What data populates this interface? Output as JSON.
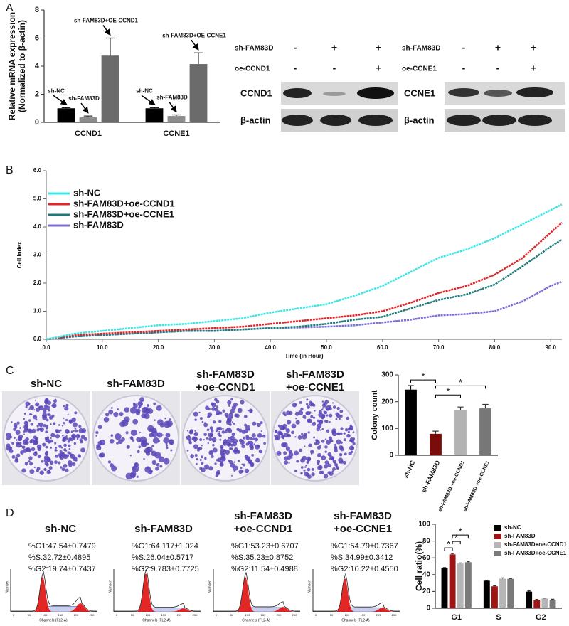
{
  "panel_labels": [
    "A",
    "B",
    "C",
    "D"
  ],
  "chart_data": [
    {
      "type": "bar",
      "categories": [
        "CCND1",
        "CCNE1"
      ],
      "ylabel": [
        "Relative mRNA expression",
        "(Normalized to β-actin)"
      ],
      "series": [
        {
          "color": "#000000",
          "values": [
            1.0,
            1.0
          ],
          "errors": [
            0.05,
            0.05
          ]
        },
        {
          "color": "#8c8c8c",
          "values": [
            0.35,
            0.45
          ],
          "errors": [
            0.1,
            0.08
          ]
        },
        {
          "color": "#6b6b6b",
          "values": [
            4.75,
            4.15
          ],
          "errors": [
            1.25,
            0.8
          ]
        }
      ],
      "annotations": [
        [
          "sh-NC",
          "sh-FAM83D",
          "sh-FAM83D+OE-CCND1"
        ],
        [
          "sh-NC",
          "sh-FAM83D",
          "sh-FAM83D+OE-CCNE1"
        ]
      ],
      "ylim": [
        0,
        8
      ],
      "yticks": [
        0,
        2,
        4,
        6,
        8
      ]
    },
    {
      "type": "line",
      "xlabel": "Time (in Hour)",
      "ylabel": "Cell Index",
      "legend": "upper left",
      "x": [
        0,
        5,
        10,
        15,
        20,
        25,
        30,
        35,
        40,
        45,
        50,
        55,
        60,
        65,
        70,
        75,
        80,
        85,
        90,
        92
      ],
      "series": [
        {
          "name": "sh-NC",
          "color": "#3de6e6",
          "values": [
            0,
            0.2,
            0.3,
            0.4,
            0.5,
            0.55,
            0.65,
            0.75,
            0.95,
            1.1,
            1.25,
            1.55,
            1.9,
            2.4,
            2.9,
            3.2,
            3.6,
            4.1,
            4.6,
            4.8
          ]
        },
        {
          "name": "sh-FAM83D+oe-CCND1",
          "color": "#e0262b",
          "values": [
            0,
            0.15,
            0.2,
            0.25,
            0.3,
            0.35,
            0.4,
            0.45,
            0.55,
            0.65,
            0.75,
            0.85,
            1.0,
            1.3,
            1.65,
            1.9,
            2.3,
            2.9,
            3.8,
            4.15
          ]
        },
        {
          "name": "sh-FAM83D+oe-CCNE1",
          "color": "#1f7a7a",
          "values": [
            0,
            0.1,
            0.15,
            0.2,
            0.25,
            0.3,
            0.3,
            0.35,
            0.4,
            0.45,
            0.55,
            0.7,
            0.8,
            1.1,
            1.4,
            1.6,
            1.95,
            2.6,
            3.3,
            3.55
          ]
        },
        {
          "name": "sh-FAM83D",
          "color": "#7b6fd6",
          "values": [
            0,
            0.1,
            0.15,
            0.2,
            0.25,
            0.3,
            0.3,
            0.35,
            0.4,
            0.42,
            0.45,
            0.5,
            0.6,
            0.7,
            0.85,
            0.9,
            1.0,
            1.35,
            1.9,
            2.05
          ]
        }
      ],
      "xlim": [
        0,
        92
      ],
      "ylim": [
        0,
        6
      ],
      "xticks": [
        {
          "value": 0,
          "label": "0.0"
        },
        {
          "value": 10,
          "label": "10.0"
        },
        {
          "value": 20,
          "label": "20.0"
        },
        {
          "value": 30,
          "label": "30.0"
        },
        {
          "value": 40,
          "label": "40.0"
        },
        {
          "value": 50,
          "label": "50.0"
        },
        {
          "value": 60,
          "label": "60.0"
        },
        {
          "value": 70,
          "label": "70.0"
        },
        {
          "value": 80,
          "label": "80.0"
        },
        {
          "value": 90,
          "label": "90.0"
        }
      ],
      "yticks": [
        {
          "value": 0,
          "label": "0.0"
        },
        {
          "value": 1,
          "label": "1.0"
        },
        {
          "value": 2,
          "label": "2.0"
        },
        {
          "value": 3,
          "label": "3.0"
        },
        {
          "value": 4,
          "label": "4.0"
        },
        {
          "value": 5,
          "label": "5.0"
        },
        {
          "value": 6,
          "label": "6.0"
        }
      ]
    },
    {
      "type": "bar",
      "ylabel": [
        "Colony count"
      ],
      "categories": [
        "sh-NC",
        "sh-FAM83D",
        "sh-FAM83D +oe-CCND1",
        "sh-FAM83D +oe-CCNE1"
      ],
      "series": [
        {
          "colors": [
            "#000000",
            "#7a0c0c",
            "#b3b3b3",
            "#777777"
          ],
          "values": [
            245,
            80,
            170,
            175
          ],
          "errors": [
            15,
            10,
            10,
            15
          ]
        }
      ],
      "significance": [
        {
          "pair": [
            0,
            1
          ],
          "label": "*"
        },
        {
          "pair": [
            1,
            2
          ],
          "label": "*"
        },
        {
          "pair": [
            1,
            3
          ],
          "label": "*"
        }
      ],
      "ylim": [
        0,
        300
      ],
      "yticks": [
        0,
        100,
        200,
        300
      ]
    },
    {
      "type": "bar",
      "ylabel": [
        "Cell ratio(%)"
      ],
      "legend": "upper right",
      "categories": [
        "G1",
        "S",
        "G2"
      ],
      "series": [
        {
          "name": "sh-NC",
          "color": "#000000",
          "values": [
            47.54,
            32.72,
            19.74
          ],
          "errors": [
            0.7479,
            0.4895,
            0.7437
          ]
        },
        {
          "name": "sh-FAM83D",
          "color": "#9e1414",
          "values": [
            64.117,
            26.04,
            9.783
          ],
          "errors": [
            1.024,
            0.5717,
            0.7725
          ]
        },
        {
          "name": "sh-FAM83D+oe-CCND1",
          "color": "#b5b5b5",
          "values": [
            53.23,
            35.23,
            11.54
          ],
          "errors": [
            0.6707,
            0.8752,
            0.4988
          ]
        },
        {
          "name": "sh-FAM83D+oe-CCNE1",
          "color": "#7a7a7a",
          "values": [
            54.79,
            34.99,
            10.22
          ],
          "errors": [
            0.7367,
            0.3412,
            0.455
          ]
        }
      ],
      "significance": [
        {
          "category": 0,
          "pair": [
            0,
            1
          ],
          "label": "*"
        },
        {
          "category": 0,
          "pair": [
            1,
            2
          ],
          "label": "*"
        },
        {
          "category": 0,
          "pair": [
            1,
            3
          ],
          "label": "*"
        }
      ],
      "ylim": [
        0,
        100
      ],
      "yticks": [
        0,
        20,
        40,
        60,
        80,
        100
      ]
    }
  ],
  "western_blot": [
    {
      "rows": [
        {
          "label": "sh-FAM83D",
          "signs": [
            "-",
            "+",
            "+"
          ]
        },
        {
          "label": "oe-CCND1",
          "signs": [
            "-",
            "-",
            "+"
          ]
        }
      ],
      "proteins": [
        "CCND1",
        "β-actin"
      ]
    },
    {
      "rows": [
        {
          "label": "sh-FAM83D",
          "signs": [
            "-",
            "+",
            "+"
          ]
        },
        {
          "label": "oe-CCNE1",
          "signs": [
            "-",
            "-",
            "+"
          ]
        }
      ],
      "proteins": [
        "CCNE1",
        "β-actin"
      ]
    }
  ],
  "colony_titles": [
    [
      "sh-NC"
    ],
    [
      "sh-FAM83D"
    ],
    [
      "sh-FAM83D",
      "+oe-CCND1"
    ],
    [
      "sh-FAM83D",
      "+oe-CCNE1"
    ]
  ],
  "flow_cytometry": {
    "axis_x": "Channels (FL2-A)",
    "axis_y": "Number",
    "xticks": [
      "0",
      "50",
      "100",
      "150",
      "200",
      "250"
    ],
    "panels": [
      {
        "title": [
          "sh-NC"
        ],
        "stats": [
          "%G1:47.54±0.7479",
          "%S:32.72±0.4895",
          "%G2:19.74±0.7437"
        ]
      },
      {
        "title": [
          "sh-FAM83D"
        ],
        "stats": [
          "%G1:64.117±1.024",
          "%S:26.04±0.5717",
          "%G2:9.783±0.7725"
        ]
      },
      {
        "title": [
          "sh-FAM83D",
          "+oe-CCND1"
        ],
        "stats": [
          "%G1:53.23±0.6707",
          "%S:35.23±0.8752",
          "%G2:11.54±0.4988"
        ]
      },
      {
        "title": [
          "sh-FAM83D",
          "+oe-CCNE1"
        ],
        "stats": [
          "%G1:54.79±0.7367",
          "%S:34.99±0.3412",
          "%G2:10.22±0.4550"
        ]
      }
    ]
  }
}
